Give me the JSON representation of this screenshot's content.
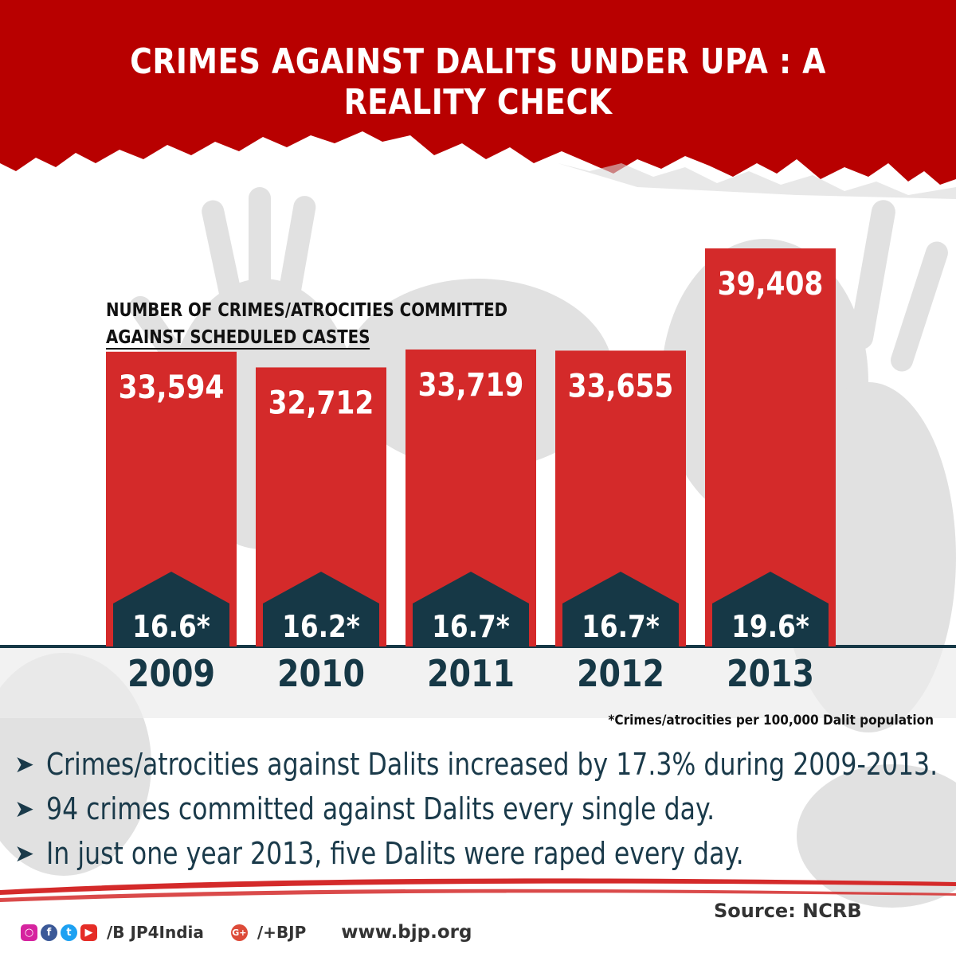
{
  "header": {
    "title": "CRIMES AGAINST DALITS UNDER UPA : A REALITY CHECK"
  },
  "chart_data": {
    "type": "bar",
    "subtitle_line1": "NUMBER OF CRIMES/ATROCITIES COMMITTED",
    "subtitle_line2": "AGAINST SCHEDULED CASTES",
    "categories": [
      "2009",
      "2010",
      "2011",
      "2012",
      "2013"
    ],
    "values": [
      33594,
      32712,
      33719,
      33655,
      39408
    ],
    "value_labels": [
      "33,594",
      "32,712",
      "33,719",
      "33,655",
      "39,408"
    ],
    "rates": [
      16.6,
      16.2,
      16.7,
      16.7,
      19.6
    ],
    "rate_labels": [
      "16.6*",
      "16.2*",
      "16.7*",
      "16.7*",
      "19.6*"
    ],
    "footnote": "*Crimes/atrocities per 100,000 Dalit population",
    "colors": {
      "bar": "#d42a2a",
      "rate_box": "#163846",
      "year_text": "#163846"
    }
  },
  "bullets": [
    "Crimes/atrocities against Dalits increased by 17.3% during 2009-2013.",
    "94 crimes committed against Dalits every single day.",
    "In just one year 2013, five Dalits were raped every day."
  ],
  "source": "Source: NCRB",
  "footer": {
    "social_icons": [
      "instagram-icon",
      "facebook-icon",
      "twitter-icon",
      "youtube-icon"
    ],
    "handle": "/B JP4India",
    "gplus_icon_label": "G+",
    "gplus": "/+BJP",
    "website": "www.bjp.org"
  },
  "colors": {
    "banner": "#b80000",
    "accent_red": "#d42a2a",
    "navy": "#163846"
  }
}
